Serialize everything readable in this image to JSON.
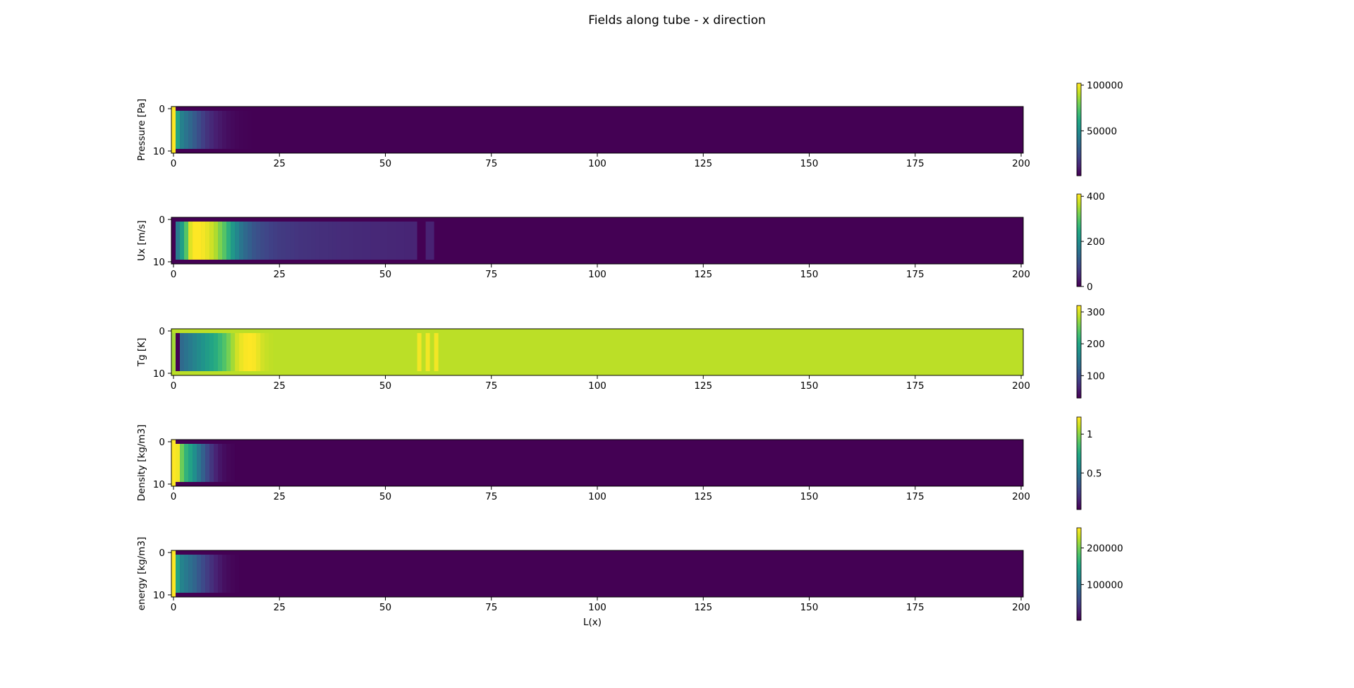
{
  "figure": {
    "title": "Fields along tube - x direction",
    "xlabel": "L(x)"
  },
  "chart_data": [
    {
      "type": "heatmap",
      "ylabel": "Pressure [Pa]",
      "xlim": [
        -0.5,
        200.5
      ],
      "ylim": [
        10.5,
        -0.5
      ],
      "xticks": [
        0,
        25,
        50,
        75,
        100,
        125,
        150,
        175,
        200
      ],
      "yticks": [
        0,
        10
      ],
      "colorbar": {
        "min": 1000,
        "max": 102000,
        "ticks": [
          50000,
          100000
        ]
      },
      "profile": {
        "values": [
          102000,
          60000,
          45000,
          40000,
          35000,
          30000,
          25000,
          20000,
          16000,
          13000,
          10000,
          8000,
          6000,
          4500,
          3500,
          2500,
          2000,
          1500,
          1200,
          1000
        ],
        "tail": 1000,
        "interior_rows": [
          1,
          9
        ],
        "boundary_first_col_edge": 102000,
        "boundary_value": 1000
      }
    },
    {
      "type": "heatmap",
      "ylabel": "Ux [m/s]",
      "xlim": [
        -0.5,
        200.5
      ],
      "ylim": [
        10.5,
        -0.5
      ],
      "xticks": [
        0,
        25,
        50,
        75,
        100,
        125,
        150,
        175,
        200
      ],
      "yticks": [
        0,
        10
      ],
      "colorbar": {
        "min": 0,
        "max": 410,
        "ticks": [
          0,
          200,
          400
        ]
      },
      "profile": {
        "values": [
          0,
          170,
          230,
          300,
          390,
          410,
          410,
          405,
          395,
          380,
          360,
          330,
          300,
          260,
          220,
          190,
          160,
          140,
          125,
          110,
          100,
          92,
          86,
          80,
          76,
          72,
          70,
          68,
          66,
          64,
          62,
          61,
          60,
          59,
          58,
          57,
          56,
          55,
          54,
          53,
          52,
          52,
          51,
          50,
          50,
          49,
          49,
          48,
          48,
          47,
          47,
          46,
          46,
          45,
          45,
          44,
          44,
          43
        ],
        "tail": 0,
        "overrides": [
          [
            58,
            0
          ],
          [
            59,
            0
          ],
          [
            60,
            40
          ],
          [
            61,
            40
          ]
        ],
        "interior_rows": [
          1,
          9
        ],
        "boundary_value": 0
      }
    },
    {
      "type": "heatmap",
      "ylabel": "Tg [K]",
      "xlim": [
        -0.5,
        200.5
      ],
      "ylim": [
        10.5,
        -0.5
      ],
      "xticks": [
        0,
        25,
        50,
        75,
        100,
        125,
        150,
        175,
        200
      ],
      "yticks": [
        0,
        10
      ],
      "colorbar": {
        "min": 30,
        "max": 320,
        "ticks": [
          100,
          200,
          300
        ]
      },
      "profile": {
        "values": [
          280,
          30,
          130,
          140,
          150,
          160,
          170,
          180,
          190,
          200,
          210,
          225,
          240,
          260,
          280,
          300,
          312,
          318,
          320,
          318,
          310,
          300,
          295,
          292
        ],
        "tail": 290,
        "overrides": [
          [
            58,
            315
          ],
          [
            60,
            315
          ],
          [
            62,
            315
          ]
        ],
        "interior_rows": [
          1,
          9
        ],
        "boundary_value": 290
      }
    },
    {
      "type": "heatmap",
      "ylabel": "Density [kg/m3]",
      "xlim": [
        -0.5,
        200.5
      ],
      "ylim": [
        10.5,
        -0.5
      ],
      "xticks": [
        0,
        25,
        50,
        75,
        100,
        125,
        150,
        175,
        200
      ],
      "yticks": [
        0,
        10
      ],
      "colorbar": {
        "min": 0.03,
        "max": 1.22,
        "ticks": [
          0.5,
          1.0
        ]
      },
      "profile": {
        "values": [
          1.22,
          1.2,
          0.95,
          0.8,
          0.72,
          0.62,
          0.5,
          0.4,
          0.3,
          0.22,
          0.15,
          0.1,
          0.07,
          0.05,
          0.04,
          0.03
        ],
        "tail": 0.03,
        "interior_rows": [
          1,
          9
        ],
        "boundary_first_col_edge": 1.22,
        "boundary_value": 0.03
      }
    },
    {
      "type": "heatmap",
      "ylabel": "energy [kg/m3]",
      "xlim": [
        -0.5,
        200.5
      ],
      "ylim": [
        10.5,
        -0.5
      ],
      "xticks": [
        0,
        25,
        50,
        75,
        100,
        125,
        150,
        175,
        200
      ],
      "yticks": [
        0,
        10
      ],
      "colorbar": {
        "min": 2500,
        "max": 255000,
        "ticks": [
          100000,
          200000
        ]
      },
      "profile": {
        "values": [
          255000,
          150000,
          115000,
          105000,
          95000,
          85000,
          72000,
          60000,
          48000,
          38000,
          28000,
          20000,
          13000,
          9000,
          6000,
          4000,
          2500
        ],
        "tail": 2500,
        "interior_rows": [
          1,
          9
        ],
        "boundary_first_col_edge": 255000,
        "boundary_value": 2500
      }
    }
  ]
}
